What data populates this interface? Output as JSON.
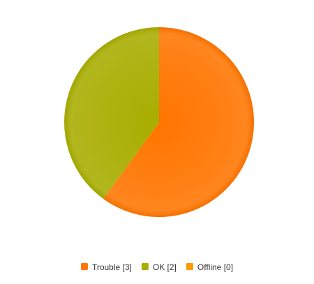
{
  "chart_data": {
    "type": "pie",
    "title": "",
    "legend_position": "bottom",
    "slices": [
      {
        "label": "Trouble [3]",
        "value": 3,
        "color": "#ff7500"
      },
      {
        "label": "OK [2]",
        "value": 2,
        "color": "#a8ad00"
      },
      {
        "label": "Offline [0]",
        "value": 0,
        "color": "#ff9a00"
      }
    ]
  }
}
